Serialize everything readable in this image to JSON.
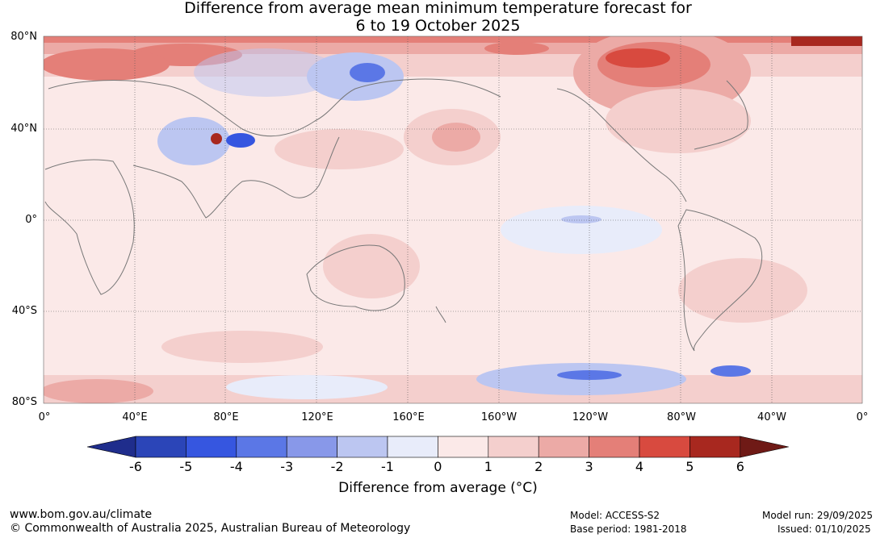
{
  "title": {
    "line1": "Difference from average mean minimum temperature forecast for",
    "line2": "6 to 19 October 2025"
  },
  "lat_labels": [
    "80°N",
    "40°N",
    "0°",
    "40°S",
    "80°S"
  ],
  "lon_labels": [
    "0°",
    "40°E",
    "80°E",
    "120°E",
    "160°E",
    "160°W",
    "120°W",
    "80°W",
    "40°W",
    "0°"
  ],
  "colorbar": {
    "ticks": [
      "-6",
      "-5",
      "-4",
      "-3",
      "-2",
      "-1",
      "0",
      "1",
      "2",
      "3",
      "4",
      "5",
      "6"
    ],
    "colors": [
      "#1f2d8c",
      "#2b45b8",
      "#3656e0",
      "#5b77e6",
      "#8898e9",
      "#bcc6f1",
      "#e8ecfa",
      "#fbe9e8",
      "#f4cfcd",
      "#ecaaa6",
      "#e47f78",
      "#d84a3f",
      "#a8281f",
      "#6f1a16"
    ],
    "label": "Difference from average (°C)"
  },
  "footer": {
    "url": "www.bom.gov.au/climate",
    "copyright": "© Commonwealth of Australia 2025, Australian Bureau of Meteorology",
    "model": "Model: ACCESS-S2",
    "base_period": "Base period: 1981-2018",
    "model_run": "Model run: 29/09/2025",
    "issued": "Issued: 01/10/2025"
  }
}
